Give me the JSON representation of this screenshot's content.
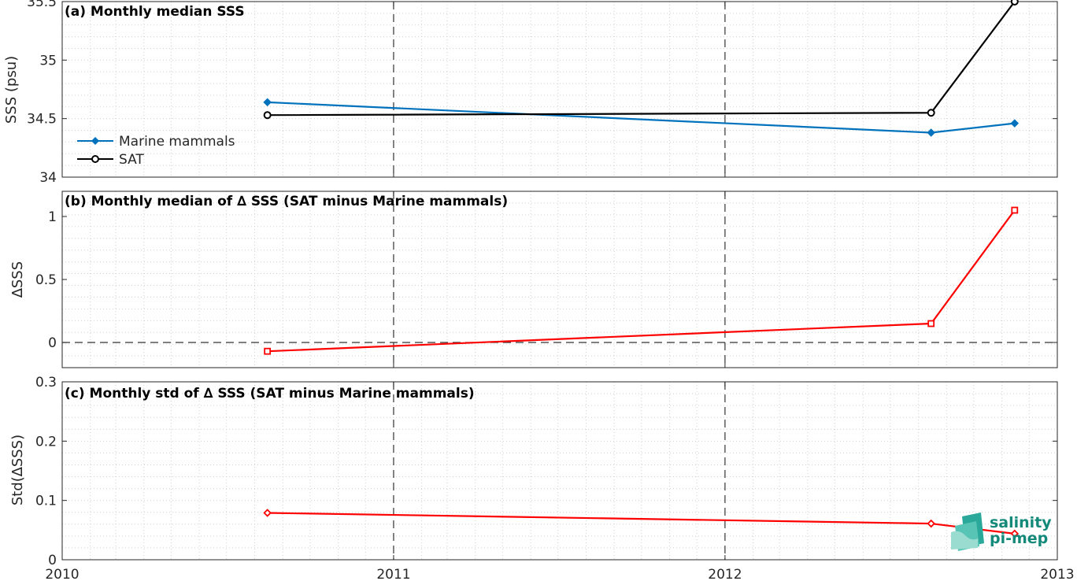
{
  "chart_data": [
    {
      "type": "line",
      "title": "(a) Monthly median SSS",
      "ylabel": "SSS (psu)",
      "ylim": [
        34,
        35.5
      ],
      "yticks": [
        "34",
        "34.5",
        "35",
        "35.5"
      ],
      "xlim": [
        "2010-01-01",
        "2013-01-01"
      ],
      "xticks": [
        "2010",
        "2011",
        "2012",
        "2013"
      ],
      "grid": true,
      "legend_position": "lower-left",
      "series": [
        {
          "name": "Marine mammals",
          "color": "#0072bd",
          "marker": "diamond",
          "x": [
            "2010-08-15",
            "2012-08-15",
            "2012-11-15"
          ],
          "y": [
            34.64,
            34.38,
            34.46
          ]
        },
        {
          "name": "SAT",
          "color": "#000000",
          "marker": "circle",
          "x": [
            "2010-08-15",
            "2012-08-15",
            "2012-11-15"
          ],
          "y": [
            34.53,
            34.55,
            35.5
          ]
        }
      ]
    },
    {
      "type": "line",
      "title": "(b) Monthly median of ∆ SSS (SAT minus Marine mammals)",
      "ylabel": "∆SSS",
      "ylim": [
        -0.2,
        1.2
      ],
      "yticks": [
        "0",
        "0.5",
        "1"
      ],
      "xlim": [
        "2010-01-01",
        "2013-01-01"
      ],
      "reference_line_y": 0,
      "grid": true,
      "series": [
        {
          "color": "#ff0000",
          "marker": "square",
          "x": [
            "2010-08-15",
            "2012-08-15",
            "2012-11-15"
          ],
          "y": [
            -0.07,
            0.15,
            1.05
          ]
        }
      ]
    },
    {
      "type": "line",
      "title": "(c) Monthly std of ∆ SSS (SAT minus Marine mammals)",
      "ylabel": "Std(∆SSS)",
      "ylim": [
        0,
        0.3
      ],
      "yticks": [
        "0",
        "0.1",
        "0.2",
        "0.3"
      ],
      "xlim": [
        "2010-01-01",
        "2013-01-01"
      ],
      "xticks": [
        "2010",
        "2011",
        "2012",
        "2013"
      ],
      "grid": true,
      "series": [
        {
          "color": "#ff0000",
          "marker": "diamond",
          "x": [
            "2010-08-15",
            "2012-08-15",
            "2012-11-15"
          ],
          "y": [
            0.079,
            0.061,
            0.044
          ]
        }
      ]
    }
  ],
  "logo": {
    "line1": "salinity",
    "line2": "pi-mep"
  },
  "colors": {
    "axis": "#262626",
    "grid": "#d0d0d0",
    "year_line": "#333333"
  }
}
